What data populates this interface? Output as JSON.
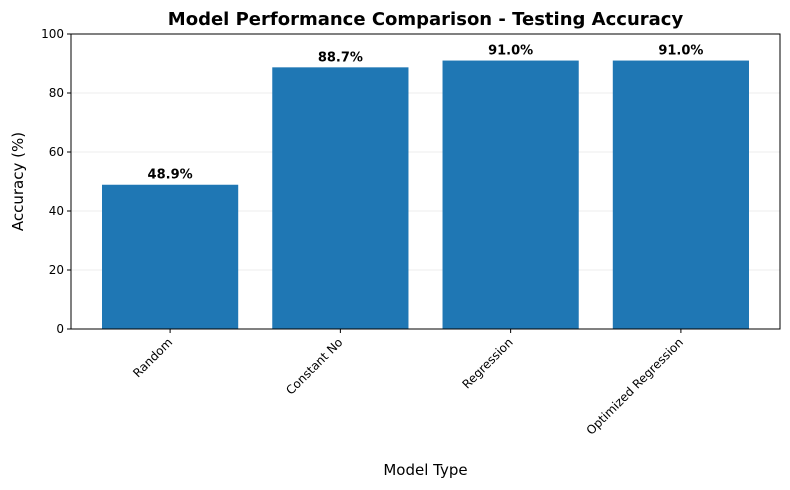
{
  "chart_data": {
    "type": "bar",
    "title": "Model Performance Comparison - Testing Accuracy",
    "xlabel": "Model Type",
    "ylabel": "Accuracy (%)",
    "categories": [
      "Random",
      "Constant No",
      "Regression",
      "Optimized Regression"
    ],
    "values": [
      48.9,
      88.7,
      91.0,
      91.0
    ],
    "data_labels": [
      "48.9%",
      "88.7%",
      "91.0%",
      "91.0%"
    ],
    "ylim": [
      0,
      100
    ],
    "yticks": [
      0,
      20,
      40,
      60,
      80,
      100
    ],
    "grid": "y",
    "legend": "none",
    "colors": {
      "bar": "#1f77b4",
      "grid": "#e6e6e6",
      "axis": "#000000"
    }
  }
}
